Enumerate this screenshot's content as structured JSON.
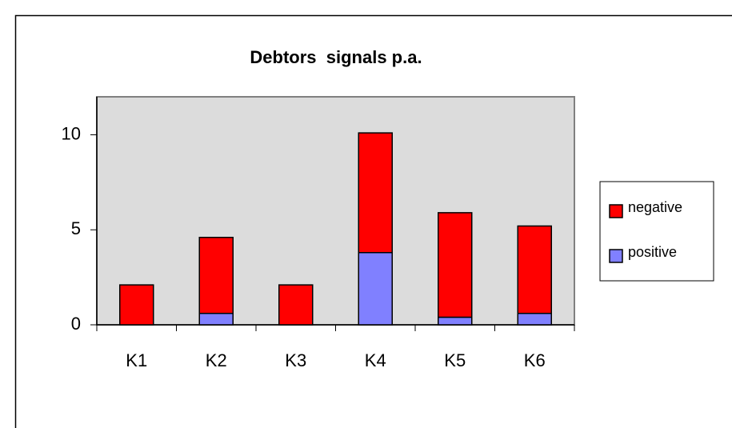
{
  "chart_data": {
    "type": "stacked_bar",
    "title": "Debtors  signals p.a.",
    "categories": [
      "K1",
      "K2",
      "K3",
      "K4",
      "K5",
      "K6"
    ],
    "series": [
      {
        "name": "positive",
        "color": "#8080ff",
        "values": [
          0,
          0.6,
          0,
          3.8,
          0.4,
          0.6
        ]
      },
      {
        "name": "negative",
        "color": "#ff0000",
        "values": [
          2.1,
          4.0,
          2.1,
          6.3,
          5.5,
          4.6
        ]
      }
    ],
    "ylim": [
      0,
      12
    ],
    "yticks": [
      0,
      5,
      10
    ],
    "grid": false,
    "legend": "right"
  }
}
